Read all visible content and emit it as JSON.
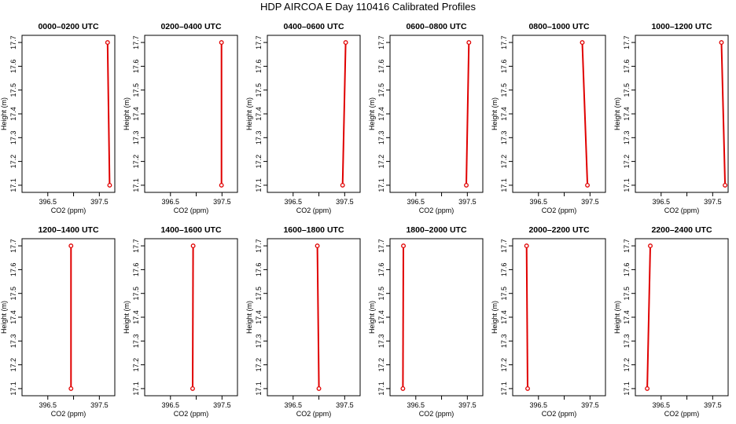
{
  "title": "HDP AIRCOA E  Day 110416  Calibrated Profiles",
  "colors": {
    "profile": "#e00000",
    "frame": "#000000"
  },
  "chart_data": [
    {
      "type": "line",
      "title": "0000–0200 UTC",
      "xlabel": "CO2 (ppm)",
      "ylabel": "Height (m)",
      "xlim": [
        396.0,
        397.8
      ],
      "ylim": [
        17.07,
        17.73
      ],
      "xticks": [
        396.5,
        397.0,
        397.5
      ],
      "xtick_labels": [
        "396.5",
        "",
        "397.5"
      ],
      "yticks": [
        17.1,
        17.2,
        17.3,
        17.4,
        17.5,
        17.6,
        17.7
      ],
      "ytick_labels": [
        "17.1",
        "17.2",
        "17.3",
        "17.4",
        "17.5",
        "17.6",
        "17.7"
      ],
      "series": [
        {
          "x": [
            397.66,
            397.7
          ],
          "y": [
            17.7,
            17.1
          ]
        }
      ]
    },
    {
      "type": "line",
      "title": "0200–0400 UTC",
      "xlabel": "CO2 (ppm)",
      "ylabel": "Height (m)",
      "xlim": [
        396.0,
        397.8
      ],
      "ylim": [
        17.07,
        17.73
      ],
      "xticks": [
        396.5,
        397.0,
        397.5
      ],
      "xtick_labels": [
        "396.5",
        "",
        "397.5"
      ],
      "yticks": [
        17.1,
        17.2,
        17.3,
        17.4,
        17.5,
        17.6,
        17.7
      ],
      "ytick_labels": [
        "17.1",
        "17.2",
        "17.3",
        "17.4",
        "17.5",
        "17.6",
        "17.7"
      ],
      "series": [
        {
          "x": [
            397.49,
            397.49
          ],
          "y": [
            17.7,
            17.1
          ]
        }
      ]
    },
    {
      "type": "line",
      "title": "0400–0600 UTC",
      "xlabel": "CO2 (ppm)",
      "ylabel": "Height (m)",
      "xlim": [
        396.0,
        397.8
      ],
      "ylim": [
        17.07,
        17.73
      ],
      "xticks": [
        396.5,
        397.0,
        397.5
      ],
      "xtick_labels": [
        "396.5",
        "",
        "397.5"
      ],
      "yticks": [
        17.1,
        17.2,
        17.3,
        17.4,
        17.5,
        17.6,
        17.7
      ],
      "ytick_labels": [
        "17.1",
        "17.2",
        "17.3",
        "17.4",
        "17.5",
        "17.6",
        "17.7"
      ],
      "series": [
        {
          "x": [
            397.52,
            397.46
          ],
          "y": [
            17.7,
            17.1
          ]
        }
      ]
    },
    {
      "type": "line",
      "title": "0600–0800 UTC",
      "xlabel": "CO2 (ppm)",
      "ylabel": "Height (m)",
      "xlim": [
        396.0,
        397.8
      ],
      "ylim": [
        17.07,
        17.73
      ],
      "xticks": [
        396.5,
        397.0,
        397.5
      ],
      "xtick_labels": [
        "396.5",
        "",
        "397.5"
      ],
      "yticks": [
        17.1,
        17.2,
        17.3,
        17.4,
        17.5,
        17.6,
        17.7
      ],
      "ytick_labels": [
        "17.1",
        "17.2",
        "17.3",
        "17.4",
        "17.5",
        "17.6",
        "17.7"
      ],
      "series": [
        {
          "x": [
            397.53,
            397.48
          ],
          "y": [
            17.7,
            17.1
          ]
        }
      ]
    },
    {
      "type": "line",
      "title": "0800–1000 UTC",
      "xlabel": "CO2 (ppm)",
      "ylabel": "Height (m)",
      "xlim": [
        396.0,
        397.8
      ],
      "ylim": [
        17.07,
        17.73
      ],
      "xticks": [
        396.5,
        397.0,
        397.5
      ],
      "xtick_labels": [
        "396.5",
        "",
        "397.5"
      ],
      "yticks": [
        17.1,
        17.2,
        17.3,
        17.4,
        17.5,
        17.6,
        17.7
      ],
      "ytick_labels": [
        "17.1",
        "17.2",
        "17.3",
        "17.4",
        "17.5",
        "17.6",
        "17.7"
      ],
      "series": [
        {
          "x": [
            397.35,
            397.45
          ],
          "y": [
            17.7,
            17.1
          ]
        }
      ]
    },
    {
      "type": "line",
      "title": "1000–1200 UTC",
      "xlabel": "CO2 (ppm)",
      "ylabel": "Height (m)",
      "xlim": [
        396.0,
        397.8
      ],
      "ylim": [
        17.07,
        17.73
      ],
      "xticks": [
        396.5,
        397.0,
        397.5
      ],
      "xtick_labels": [
        "396.5",
        "",
        "397.5"
      ],
      "yticks": [
        17.1,
        17.2,
        17.3,
        17.4,
        17.5,
        17.6,
        17.7
      ],
      "ytick_labels": [
        "17.1",
        "17.2",
        "17.3",
        "17.4",
        "17.5",
        "17.6",
        "17.7"
      ],
      "series": [
        {
          "x": [
            397.67,
            397.74
          ],
          "y": [
            17.7,
            17.1
          ]
        }
      ]
    },
    {
      "type": "line",
      "title": "1200–1400 UTC",
      "xlabel": "CO2 (ppm)",
      "ylabel": "Height (m)",
      "xlim": [
        396.0,
        397.8
      ],
      "ylim": [
        17.07,
        17.73
      ],
      "xticks": [
        396.5,
        397.0,
        397.5
      ],
      "xtick_labels": [
        "396.5",
        "",
        "397.5"
      ],
      "yticks": [
        17.1,
        17.2,
        17.3,
        17.4,
        17.5,
        17.6,
        17.7
      ],
      "ytick_labels": [
        "17.1",
        "17.2",
        "17.3",
        "17.4",
        "17.5",
        "17.6",
        "17.7"
      ],
      "series": [
        {
          "x": [
            396.95,
            396.95
          ],
          "y": [
            17.7,
            17.1
          ]
        }
      ]
    },
    {
      "type": "line",
      "title": "1400–1600 UTC",
      "xlabel": "CO2 (ppm)",
      "ylabel": "Height (m)",
      "xlim": [
        396.0,
        397.8
      ],
      "ylim": [
        17.07,
        17.73
      ],
      "xticks": [
        396.5,
        397.0,
        397.5
      ],
      "xtick_labels": [
        "396.5",
        "",
        "397.5"
      ],
      "yticks": [
        17.1,
        17.2,
        17.3,
        17.4,
        17.5,
        17.6,
        17.7
      ],
      "ytick_labels": [
        "17.1",
        "17.2",
        "17.3",
        "17.4",
        "17.5",
        "17.6",
        "17.7"
      ],
      "series": [
        {
          "x": [
            396.94,
            396.93
          ],
          "y": [
            17.7,
            17.1
          ]
        }
      ]
    },
    {
      "type": "line",
      "title": "1600–1800 UTC",
      "xlabel": "CO2 (ppm)",
      "ylabel": "Height (m)",
      "xlim": [
        396.0,
        397.8
      ],
      "ylim": [
        17.07,
        17.73
      ],
      "xticks": [
        396.5,
        397.0,
        397.5
      ],
      "xtick_labels": [
        "396.5",
        "",
        "397.5"
      ],
      "yticks": [
        17.1,
        17.2,
        17.3,
        17.4,
        17.5,
        17.6,
        17.7
      ],
      "ytick_labels": [
        "17.1",
        "17.2",
        "17.3",
        "17.4",
        "17.5",
        "17.6",
        "17.7"
      ],
      "series": [
        {
          "x": [
            396.97,
            397.0
          ],
          "y": [
            17.7,
            17.1
          ]
        }
      ]
    },
    {
      "type": "line",
      "title": "1800–2000 UTC",
      "xlabel": "CO2 (ppm)",
      "ylabel": "Height (m)",
      "xlim": [
        396.0,
        397.8
      ],
      "ylim": [
        17.07,
        17.73
      ],
      "xticks": [
        396.5,
        397.0,
        397.5
      ],
      "xtick_labels": [
        "396.5",
        "",
        "397.5"
      ],
      "yticks": [
        17.1,
        17.2,
        17.3,
        17.4,
        17.5,
        17.6,
        17.7
      ],
      "ytick_labels": [
        "17.1",
        "17.2",
        "17.3",
        "17.4",
        "17.5",
        "17.6",
        "17.7"
      ],
      "series": [
        {
          "x": [
            396.26,
            396.25
          ],
          "y": [
            17.7,
            17.1
          ]
        }
      ]
    },
    {
      "type": "line",
      "title": "2000–2200 UTC",
      "xlabel": "CO2 (ppm)",
      "ylabel": "Height (m)",
      "xlim": [
        396.0,
        397.8
      ],
      "ylim": [
        17.07,
        17.73
      ],
      "xticks": [
        396.5,
        397.0,
        397.5
      ],
      "xtick_labels": [
        "396.5",
        "",
        "397.5"
      ],
      "yticks": [
        17.1,
        17.2,
        17.3,
        17.4,
        17.5,
        17.6,
        17.7
      ],
      "ytick_labels": [
        "17.1",
        "17.2",
        "17.3",
        "17.4",
        "17.5",
        "17.6",
        "17.7"
      ],
      "series": [
        {
          "x": [
            396.27,
            396.29
          ],
          "y": [
            17.7,
            17.1
          ]
        }
      ]
    },
    {
      "type": "line",
      "title": "2200–2400 UTC",
      "xlabel": "CO2 (ppm)",
      "ylabel": "Height (m)",
      "xlim": [
        396.0,
        397.8
      ],
      "ylim": [
        17.07,
        17.73
      ],
      "xticks": [
        396.5,
        397.0,
        397.5
      ],
      "xtick_labels": [
        "396.5",
        "",
        "397.5"
      ],
      "yticks": [
        17.1,
        17.2,
        17.3,
        17.4,
        17.5,
        17.6,
        17.7
      ],
      "ytick_labels": [
        "17.1",
        "17.2",
        "17.3",
        "17.4",
        "17.5",
        "17.6",
        "17.7"
      ],
      "series": [
        {
          "x": [
            396.29,
            396.23
          ],
          "y": [
            17.7,
            17.1
          ]
        }
      ]
    }
  ]
}
